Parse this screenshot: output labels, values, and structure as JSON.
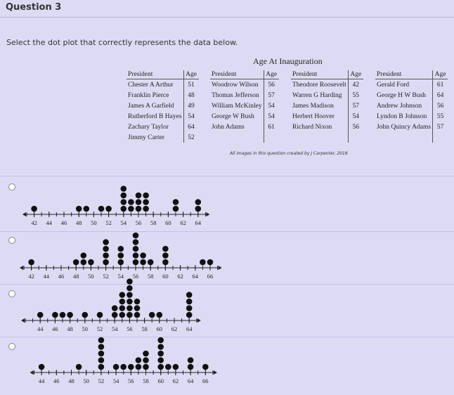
{
  "header": {
    "title": "Question 3"
  },
  "prompt": "Select the dot plot that correctly represents the data below.",
  "table": {
    "title": "Age At Inauguration",
    "columns": [
      "President",
      "Age"
    ],
    "groups": [
      [
        [
          "Chester A Arthur",
          51
        ],
        [
          "Franklin Pierce",
          48
        ],
        [
          "James A Garfield",
          49
        ],
        [
          "Rutherford B Hayes",
          54
        ],
        [
          "Zachary Taylor",
          64
        ],
        [
          "Jimmy Carter",
          52
        ]
      ],
      [
        [
          "Woodrow Wilson",
          56
        ],
        [
          "Thomas Jefferson",
          57
        ],
        [
          "William McKinley",
          54
        ],
        [
          "George W Bush",
          54
        ],
        [
          "John Adams",
          61
        ]
      ],
      [
        [
          "Theodore Roosevelt",
          42
        ],
        [
          "Warren G Harding",
          55
        ],
        [
          "James Madison",
          57
        ],
        [
          "Herbert Hoover",
          54
        ],
        [
          "Richard Nixon",
          56
        ]
      ],
      [
        [
          "Gerald Ford",
          61
        ],
        [
          "George H W Bush",
          64
        ],
        [
          "Andrew Johnson",
          56
        ],
        [
          "Lyndon B Johnson",
          55
        ],
        [
          "John Quincy Adams",
          57
        ]
      ]
    ]
  },
  "credit": "All images in this question created by J Carpenter, 2018",
  "options": [
    {
      "type": "dot",
      "xlim": [
        41,
        65
      ],
      "xticks": [
        42,
        44,
        46,
        48,
        50,
        52,
        54,
        56,
        58,
        60,
        62,
        64
      ],
      "values": [
        42,
        48,
        49,
        51,
        52,
        54,
        54,
        54,
        54,
        55,
        55,
        56,
        56,
        56,
        57,
        57,
        57,
        61,
        61,
        64,
        64
      ]
    },
    {
      "type": "dot",
      "xlim": [
        41,
        67
      ],
      "xticks": [
        42,
        44,
        46,
        48,
        50,
        52,
        54,
        56,
        58,
        60,
        62,
        64,
        66
      ],
      "values": [
        42,
        48,
        49,
        49,
        50,
        52,
        52,
        52,
        52,
        54,
        54,
        54,
        56,
        56,
        56,
        56,
        56,
        57,
        57,
        58,
        60,
        60,
        60,
        65,
        66
      ]
    },
    {
      "type": "dot",
      "xlim": [
        42,
        65
      ],
      "xticks": [
        44,
        46,
        48,
        50,
        52,
        54,
        56,
        58,
        60,
        62,
        64
      ],
      "values": [
        44,
        46,
        47,
        48,
        50,
        52,
        54,
        54,
        55,
        55,
        55,
        55,
        56,
        56,
        56,
        56,
        56,
        56,
        57,
        57,
        57,
        59,
        60,
        64,
        64,
        64,
        64
      ]
    },
    {
      "type": "dot",
      "xlim": [
        43,
        67
      ],
      "xticks": [
        44,
        46,
        48,
        50,
        52,
        54,
        56,
        58,
        60,
        62,
        64,
        66
      ],
      "values": [
        44,
        49,
        52,
        52,
        52,
        52,
        52,
        54,
        55,
        56,
        57,
        57,
        58,
        58,
        58,
        60,
        60,
        60,
        60,
        60,
        61,
        62,
        64,
        64,
        66
      ]
    }
  ]
}
